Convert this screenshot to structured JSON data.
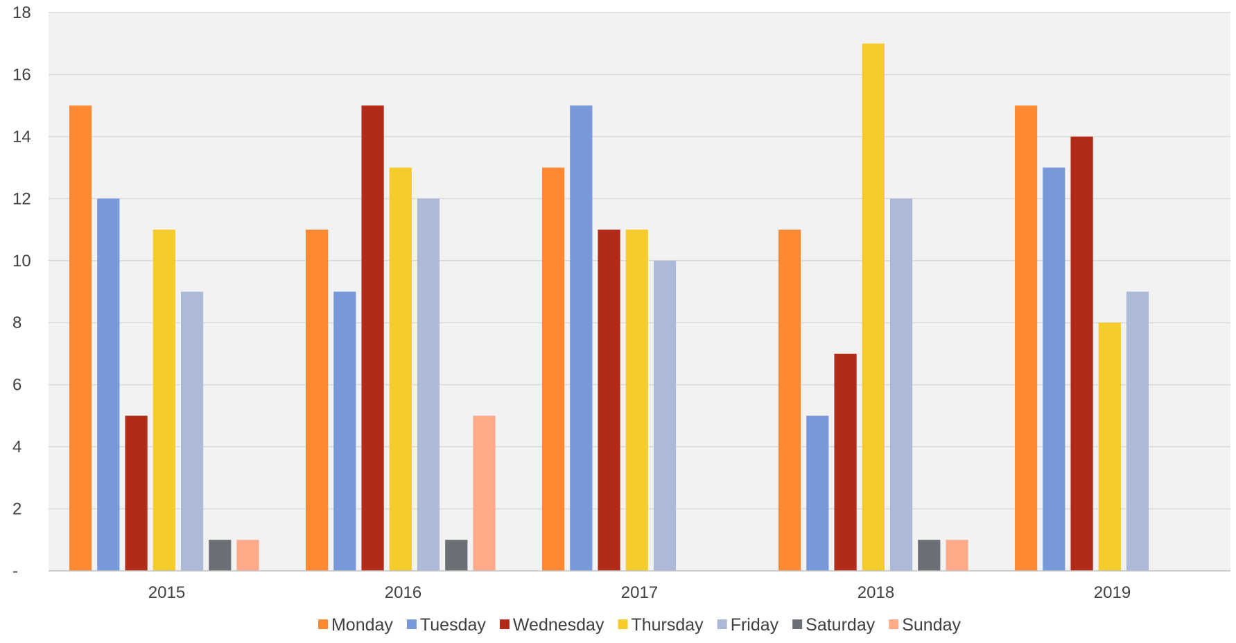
{
  "chart_data": {
    "type": "bar",
    "title": "",
    "xlabel": "",
    "ylabel": "",
    "categories": [
      "2015",
      "2016",
      "2017",
      "2018",
      "2019"
    ],
    "ylim": [
      0,
      18
    ],
    "y_ticks": [
      0,
      2,
      4,
      6,
      8,
      10,
      12,
      14,
      16,
      18
    ],
    "y_tick_labels": [
      "-",
      "2",
      "4",
      "6",
      "8",
      "10",
      "12",
      "14",
      "16",
      "18"
    ],
    "grid": true,
    "legend_position": "bottom",
    "plot_background": "#f2f2f2",
    "series": [
      {
        "name": "Monday",
        "color": "#ff8833",
        "values": [
          15,
          11,
          13,
          11,
          15
        ]
      },
      {
        "name": "Tuesday",
        "color": "#7799d9",
        "values": [
          12,
          9,
          15,
          5,
          13
        ]
      },
      {
        "name": "Wednesday",
        "color": "#b22a18",
        "values": [
          5,
          15,
          11,
          7,
          14
        ]
      },
      {
        "name": "Thursday",
        "color": "#f5cc2c",
        "values": [
          11,
          13,
          11,
          17,
          8
        ]
      },
      {
        "name": "Friday",
        "color": "#adb9d9",
        "values": [
          9,
          12,
          10,
          12,
          9
        ]
      },
      {
        "name": "Saturday",
        "color": "#6b6e75",
        "values": [
          1,
          1,
          0,
          1,
          0
        ]
      },
      {
        "name": "Sunday",
        "color": "#ffab8a",
        "values": [
          1,
          5,
          0,
          1,
          0
        ]
      }
    ]
  }
}
